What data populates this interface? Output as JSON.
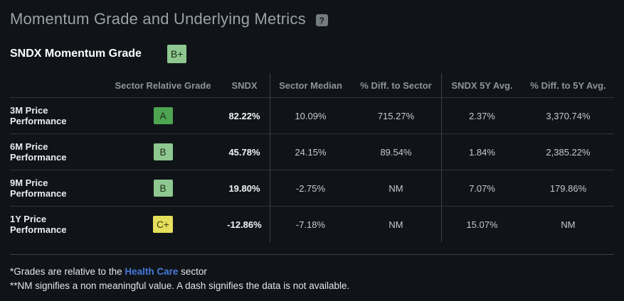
{
  "header": {
    "title": "Momentum Grade and Underlying Metrics",
    "help_label": "?"
  },
  "summary": {
    "label": "SNDX Momentum Grade",
    "grade": "B+"
  },
  "table": {
    "columns": {
      "grade": "Sector Relative Grade",
      "sndx": "SNDX",
      "sector_median": "Sector Median",
      "diff_sector": "% Diff. to Sector",
      "avg5y": "SNDX 5Y Avg.",
      "diff_5y": "% Diff. to 5Y Avg."
    },
    "rows": [
      {
        "label": "3M Price Performance",
        "grade": "A",
        "sndx": "82.22%",
        "sector_median": "10.09%",
        "diff_sector": "715.27%",
        "avg5y": "2.37%",
        "diff_5y": "3,370.74%"
      },
      {
        "label": "6M Price Performance",
        "grade": "B",
        "sndx": "45.78%",
        "sector_median": "24.15%",
        "diff_sector": "89.54%",
        "avg5y": "1.84%",
        "diff_5y": "2,385.22%"
      },
      {
        "label": "9M Price Performance",
        "grade": "B",
        "sndx": "19.80%",
        "sector_median": "-2.75%",
        "diff_sector": "NM",
        "avg5y": "7.07%",
        "diff_5y": "179.86%"
      },
      {
        "label": "1Y Price Performance",
        "grade": "C+",
        "sndx": "-12.86%",
        "sector_median": "-7.18%",
        "diff_sector": "NM",
        "avg5y": "15.07%",
        "diff_5y": "NM"
      }
    ]
  },
  "footnotes": {
    "line1_prefix": "*Grades are relative to the ",
    "line1_link": "Health Care",
    "line1_suffix": " sector",
    "line2": "**NM signifies a non meaningful value. A dash signifies the data is not available."
  },
  "colors": {
    "grade_a": "#4da551",
    "grade_b": "#8ec890",
    "grade_c_plus": "#e6df5c",
    "link_blue": "#4678d9",
    "background": "#101418"
  }
}
